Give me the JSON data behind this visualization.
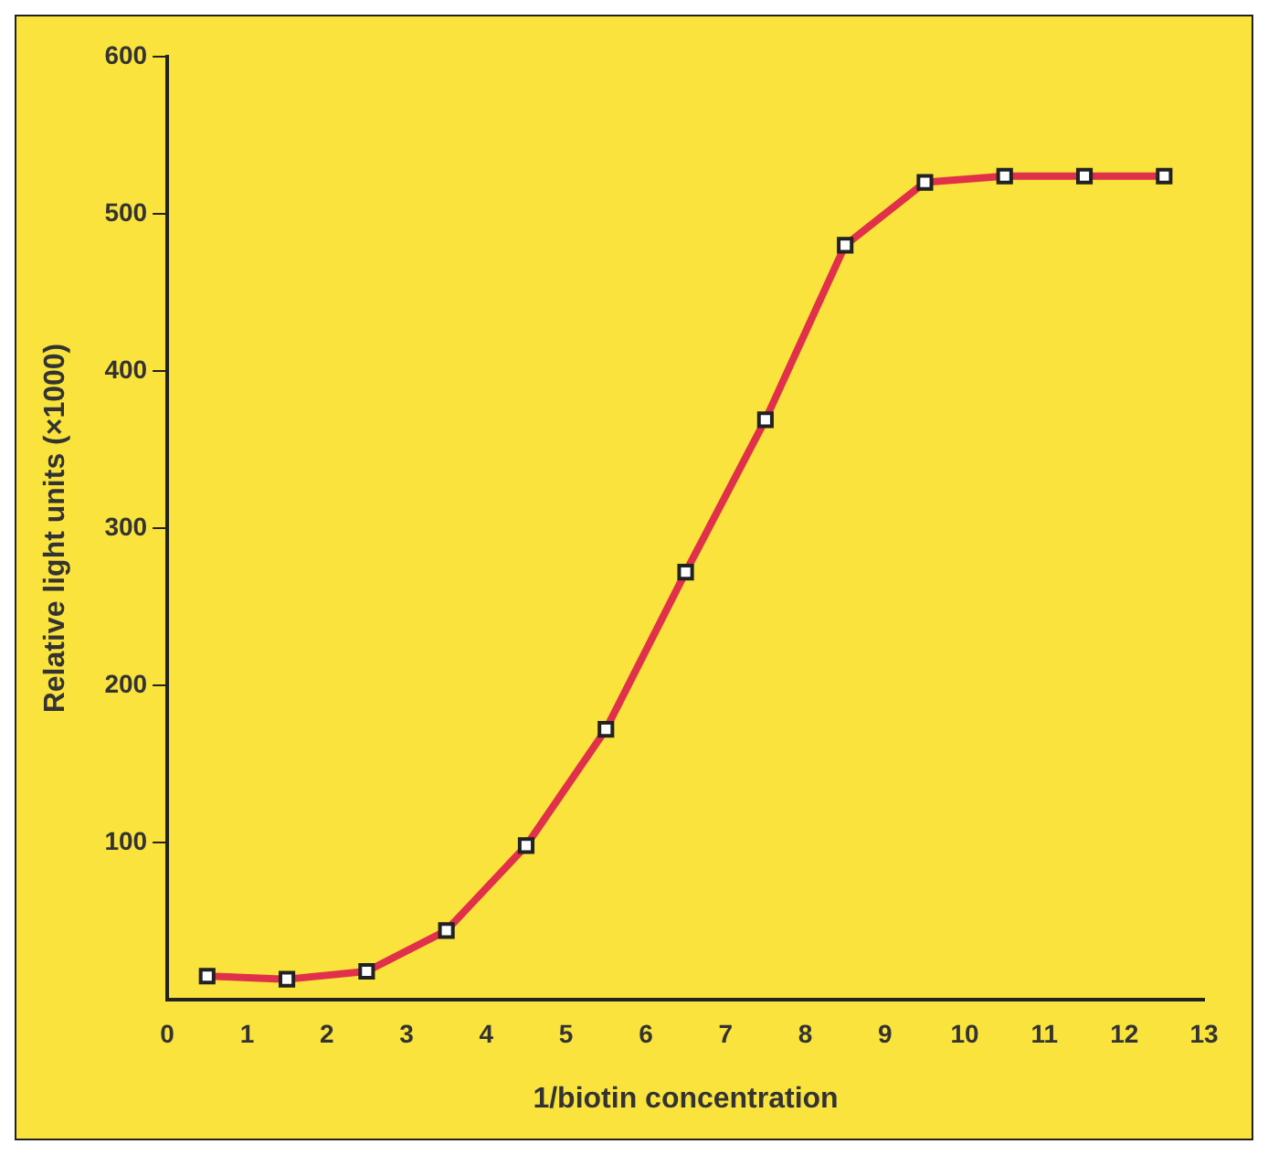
{
  "chart_data": {
    "type": "line",
    "xlabel": "1/biotin concentration",
    "ylabel": "Relative light units (×1000)",
    "x": [
      0.5,
      1.5,
      2.5,
      3.5,
      4.5,
      5.5,
      6.5,
      7.5,
      8.5,
      9.5,
      10.5,
      11.5,
      12.5
    ],
    "series": [
      {
        "color": "#e0304a",
        "values": [
          15,
          13,
          18,
          44,
          98,
          172,
          272,
          369,
          480,
          520,
          524,
          524,
          524
        ]
      }
    ],
    "xlim": [
      0,
      13
    ],
    "xticks": [
      0,
      1,
      2,
      3,
      4,
      5,
      6,
      7,
      8,
      9,
      10,
      11,
      12,
      13
    ],
    "ylim": [
      0,
      600
    ],
    "yticks": [
      100,
      200,
      300,
      400,
      500,
      600
    ],
    "grid": false,
    "legend": false,
    "marker": "square",
    "line_style": "solid"
  }
}
